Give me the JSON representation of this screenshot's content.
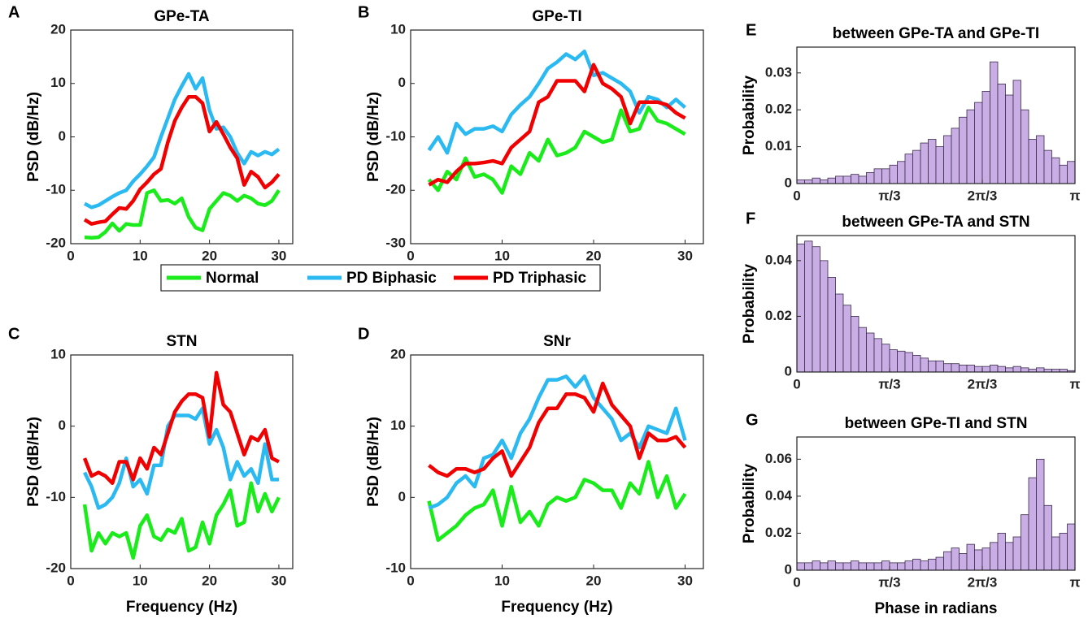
{
  "legend": [
    {
      "name": "Normal",
      "color": "#1aeb1a"
    },
    {
      "name": "PD Biphasic",
      "color": "#2bb9f2"
    },
    {
      "name": "PD Triphasic",
      "color": "#f00000"
    }
  ],
  "chart_data": [
    {
      "type": "line",
      "panel_label": "A",
      "title": "GPe-TA",
      "ylabel": "PSD (dB/Hz)",
      "x": [
        2,
        3,
        4,
        5,
        6,
        7,
        8,
        9,
        10,
        11,
        12,
        13,
        14,
        15,
        16,
        17,
        18,
        19,
        20,
        21,
        22,
        23,
        24,
        25,
        26,
        27,
        28,
        29,
        30
      ],
      "series": [
        {
          "values": [
            -18.8,
            -18.9,
            -18.8,
            -17.8,
            -16.2,
            -17.6,
            -16.3,
            -16.5,
            -16.5,
            -10.5,
            -10,
            -12,
            -11.8,
            -12.5,
            -11.5,
            -15,
            -17,
            -17.5,
            -13.5,
            -12,
            -10.5,
            -11,
            -12,
            -11,
            -11.5,
            -12.5,
            -12.8,
            -12,
            -10
          ]
        },
        {
          "values": [
            -12.5,
            -13.2,
            -12.8,
            -12,
            -11.2,
            -10.5,
            -10,
            -8.3,
            -7,
            -5.5,
            -3.8,
            0,
            3.5,
            7,
            9.5,
            11.8,
            9,
            11,
            5,
            1.5,
            1.8,
            0,
            -3,
            -5,
            -2.8,
            -3.5,
            -2.8,
            -3.3,
            -2.3
          ]
        },
        {
          "values": [
            -15.5,
            -16.3,
            -16,
            -15.8,
            -14.5,
            -13.3,
            -13.5,
            -12,
            -9.8,
            -8.5,
            -7,
            -6,
            -1,
            3,
            5.5,
            7.5,
            7.5,
            6.3,
            1,
            2.8,
            0.5,
            -2,
            -4,
            -9,
            -6.5,
            -7.5,
            -9.5,
            -8.5,
            -7
          ]
        }
      ],
      "xlim": [
        0,
        32
      ],
      "ylim": [
        -20,
        20
      ],
      "xticks": [
        0,
        10,
        20,
        30
      ],
      "yticks": [
        -20,
        -10,
        0,
        10,
        20
      ]
    },
    {
      "type": "line",
      "panel_label": "B",
      "title": "GPe-TI",
      "ylabel": "PSD (dB/Hz)",
      "x": [
        2,
        3,
        4,
        5,
        6,
        7,
        8,
        9,
        10,
        11,
        12,
        13,
        14,
        15,
        16,
        17,
        18,
        19,
        20,
        21,
        22,
        23,
        24,
        25,
        26,
        27,
        28,
        29,
        30
      ],
      "series": [
        {
          "values": [
            -18,
            -20,
            -16.5,
            -18,
            -14,
            -17.5,
            -17,
            -18,
            -20.5,
            -15.5,
            -17,
            -13,
            -14.5,
            -10.5,
            -13.5,
            -13,
            -12,
            -9,
            -10,
            -11,
            -10.5,
            -5,
            -9,
            -8.5,
            -4.5,
            -7,
            -7.5,
            -8.5,
            -9.5
          ]
        },
        {
          "values": [
            -12.5,
            -10,
            -13,
            -7.5,
            -9.5,
            -8.5,
            -8.5,
            -8,
            -9,
            -5.8,
            -4,
            -2.5,
            0,
            2.8,
            4,
            5.5,
            4.5,
            6,
            1.5,
            2,
            1,
            0,
            -1.5,
            -5.5,
            -2.5,
            -3,
            -4.5,
            -3,
            -4.5
          ]
        },
        {
          "values": [
            -19,
            -18,
            -18.5,
            -16.5,
            -15,
            -15,
            -14.8,
            -14.5,
            -15,
            -12,
            -10.5,
            -9,
            -3.5,
            -2.5,
            0.5,
            0.5,
            0.5,
            -1.5,
            3.5,
            0,
            -1,
            -2.5,
            -7.5,
            -3.5,
            -3.5,
            -3.5,
            -4,
            -5.5,
            -6.5
          ]
        }
      ],
      "xlim": [
        0,
        32
      ],
      "ylim": [
        -30,
        10
      ],
      "xticks": [
        0,
        10,
        20,
        30
      ],
      "yticks": [
        -30,
        -20,
        -10,
        0,
        10
      ]
    },
    {
      "type": "line",
      "panel_label": "C",
      "title": "STN",
      "ylabel": "PSD (dB/Hz)",
      "xlabel": "Frequency (Hz)",
      "x": [
        2,
        3,
        4,
        5,
        6,
        7,
        8,
        9,
        10,
        11,
        12,
        13,
        14,
        15,
        16,
        17,
        18,
        19,
        20,
        21,
        22,
        23,
        24,
        25,
        26,
        27,
        28,
        29,
        30
      ],
      "series": [
        {
          "values": [
            -11,
            -17.5,
            -15,
            -16.5,
            -15,
            -15.5,
            -15,
            -18.5,
            -14,
            -12.5,
            -15.5,
            -16,
            -14.5,
            -15,
            -13,
            -17.5,
            -17,
            -13.5,
            -16.5,
            -12.5,
            -11,
            -9,
            -14,
            -13.5,
            -8,
            -12,
            -9.5,
            -12,
            -10
          ]
        },
        {
          "values": [
            -6.5,
            -8.5,
            -11.5,
            -11,
            -10,
            -8,
            -4.5,
            -8.5,
            -7.5,
            -9.5,
            -5.5,
            -5.5,
            0,
            1.5,
            1.5,
            1.5,
            1,
            2.5,
            -2.5,
            -0.5,
            -3,
            -7.5,
            -5,
            -7,
            -6,
            -8,
            -2.5,
            -7.5,
            -7.5
          ]
        },
        {
          "values": [
            -4.5,
            -7,
            -6.5,
            -7,
            -8,
            -5,
            -5,
            -7.5,
            -4.5,
            -6,
            -3,
            -4,
            -1,
            2,
            3.5,
            4.5,
            4.5,
            4,
            -1.5,
            7.5,
            3,
            2,
            -1,
            -4,
            -1.5,
            -2,
            -0.5,
            -4.5,
            -5
          ]
        }
      ],
      "xlim": [
        0,
        32
      ],
      "ylim": [
        -20,
        10
      ],
      "xticks": [
        0,
        10,
        20,
        30
      ],
      "yticks": [
        -20,
        -10,
        0,
        10
      ]
    },
    {
      "type": "line",
      "panel_label": "D",
      "title": "SNr",
      "ylabel": "PSD (dB/Hz)",
      "xlabel": "Frequency (Hz)",
      "x": [
        2,
        3,
        4,
        5,
        6,
        7,
        8,
        9,
        10,
        11,
        12,
        13,
        14,
        15,
        16,
        17,
        18,
        19,
        20,
        21,
        22,
        23,
        24,
        25,
        26,
        27,
        28,
        29,
        30
      ],
      "series": [
        {
          "values": [
            -0.5,
            -6,
            -5,
            -4,
            -2.5,
            -1.5,
            -1,
            1,
            -4,
            1.5,
            -3.5,
            -2,
            -4,
            -1,
            0,
            -0.5,
            0,
            2.5,
            2,
            1,
            1,
            -1.5,
            2,
            0.5,
            5,
            0,
            3,
            -1.5,
            0.5
          ]
        },
        {
          "values": [
            -1.5,
            -1,
            0,
            2,
            3,
            1.5,
            5.5,
            6,
            8,
            5.5,
            9,
            11,
            14,
            16.5,
            16.5,
            17,
            15.5,
            17,
            14,
            12.5,
            11,
            8,
            9,
            7,
            10,
            9.5,
            9,
            12.5,
            8
          ]
        },
        {
          "values": [
            4.5,
            3.5,
            3,
            4,
            4,
            3.5,
            4,
            5.5,
            6.5,
            3,
            5,
            7,
            10.5,
            12.5,
            12.5,
            14.5,
            14.5,
            14,
            12,
            16,
            13,
            11.5,
            10,
            5.5,
            9,
            8,
            8,
            8.5,
            7
          ]
        }
      ],
      "xlim": [
        0,
        32
      ],
      "ylim": [
        -10,
        20
      ],
      "xticks": [
        0,
        10,
        20,
        30
      ],
      "yticks": [
        -10,
        0,
        10,
        20
      ]
    },
    {
      "type": "histogram",
      "panel_label": "E",
      "title": "between GPe-TA and GPe-TI",
      "ylabel": "Probability",
      "bins": [
        0,
        0.0873,
        0.1745,
        0.2618,
        0.3491,
        0.4363,
        0.5236,
        0.6109,
        0.6981,
        0.7854,
        0.8727,
        0.9599,
        1.0472,
        1.1345,
        1.2217,
        1.309,
        1.3963,
        1.4835,
        1.5708,
        1.6581,
        1.7453,
        1.8326,
        1.9199,
        2.0071,
        2.0944,
        2.1817,
        2.2689,
        2.3562,
        2.4435,
        2.5307,
        2.618,
        2.7053,
        2.7925,
        2.8798,
        2.9671,
        3.0543,
        3.1416
      ],
      "counts": [
        0.001,
        0.001,
        0.0015,
        0.001,
        0.0015,
        0.002,
        0.002,
        0.0025,
        0.002,
        0.003,
        0.004,
        0.004,
        0.005,
        0.006,
        0.008,
        0.009,
        0.011,
        0.012,
        0.01,
        0.013,
        0.015,
        0.018,
        0.02,
        0.022,
        0.025,
        0.033,
        0.027,
        0.024,
        0.028,
        0.02,
        0.012,
        0.013,
        0.009,
        0.007,
        0.005,
        0.006
      ],
      "color": "#c9aee6",
      "xlim": [
        0,
        3.1416
      ],
      "ylim": [
        0,
        0.037
      ],
      "xticks": [
        0,
        {
          "value": 1.0472,
          "label": "π/3"
        },
        {
          "value": 2.0944,
          "label": "2π/3"
        },
        {
          "value": 3.1416,
          "label": "π"
        }
      ],
      "yticks": [
        0,
        0.01,
        0.02,
        0.03
      ]
    },
    {
      "type": "histogram",
      "panel_label": "F",
      "title": "between GPe-TA and STN",
      "ylabel": "Probability",
      "bins": [
        0,
        0.0873,
        0.1745,
        0.2618,
        0.3491,
        0.4363,
        0.5236,
        0.6109,
        0.6981,
        0.7854,
        0.8727,
        0.9599,
        1.0472,
        1.1345,
        1.2217,
        1.309,
        1.3963,
        1.4835,
        1.5708,
        1.6581,
        1.7453,
        1.8326,
        1.9199,
        2.0071,
        2.0944,
        2.1817,
        2.2689,
        2.3562,
        2.4435,
        2.5307,
        2.618,
        2.7053,
        2.7925,
        2.8798,
        2.9671,
        3.0543,
        3.1416
      ],
      "counts": [
        0.046,
        0.047,
        0.045,
        0.04,
        0.034,
        0.028,
        0.024,
        0.02,
        0.016,
        0.014,
        0.012,
        0.01,
        0.008,
        0.0075,
        0.007,
        0.006,
        0.005,
        0.004,
        0.004,
        0.003,
        0.003,
        0.0025,
        0.0025,
        0.002,
        0.002,
        0.0025,
        0.002,
        0.0015,
        0.002,
        0.0015,
        0.001,
        0.0015,
        0.001,
        0.001,
        0.001,
        0.0005
      ],
      "color": "#c9aee6",
      "xlim": [
        0,
        3.1416
      ],
      "ylim": [
        0,
        0.049
      ],
      "xticks": [
        0,
        {
          "value": 1.0472,
          "label": "π/3"
        },
        {
          "value": 2.0944,
          "label": "2π/3"
        },
        {
          "value": 3.1416,
          "label": "π"
        }
      ],
      "yticks": [
        0,
        0.02,
        0.04
      ]
    },
    {
      "type": "histogram",
      "panel_label": "G",
      "title": "between GPe-TI and STN",
      "ylabel": "Probability",
      "xlabel": "Phase in radians",
      "bins": [
        0,
        0.0873,
        0.1745,
        0.2618,
        0.3491,
        0.4363,
        0.5236,
        0.6109,
        0.6981,
        0.7854,
        0.8727,
        0.9599,
        1.0472,
        1.1345,
        1.2217,
        1.309,
        1.3963,
        1.4835,
        1.5708,
        1.6581,
        1.7453,
        1.8326,
        1.9199,
        2.0071,
        2.0944,
        2.1817,
        2.2689,
        2.3562,
        2.4435,
        2.5307,
        2.618,
        2.7053,
        2.7925,
        2.8798,
        2.9671,
        3.0543,
        3.1416
      ],
      "counts": [
        0.004,
        0.004,
        0.005,
        0.004,
        0.005,
        0.004,
        0.004,
        0.005,
        0.004,
        0.004,
        0.004,
        0.005,
        0.004,
        0.004,
        0.005,
        0.006,
        0.005,
        0.006,
        0.007,
        0.01,
        0.012,
        0.009,
        0.014,
        0.011,
        0.012,
        0.015,
        0.02,
        0.015,
        0.018,
        0.03,
        0.05,
        0.06,
        0.035,
        0.018,
        0.02,
        0.025
      ],
      "color": "#c9aee6",
      "xlim": [
        0,
        3.1416
      ],
      "ylim": [
        0,
        0.072
      ],
      "xticks": [
        0,
        {
          "value": 1.0472,
          "label": "π/3"
        },
        {
          "value": 2.0944,
          "label": "2π/3"
        },
        {
          "value": 3.1416,
          "label": "π"
        }
      ],
      "yticks": [
        0,
        0.02,
        0.04,
        0.06
      ]
    }
  ]
}
